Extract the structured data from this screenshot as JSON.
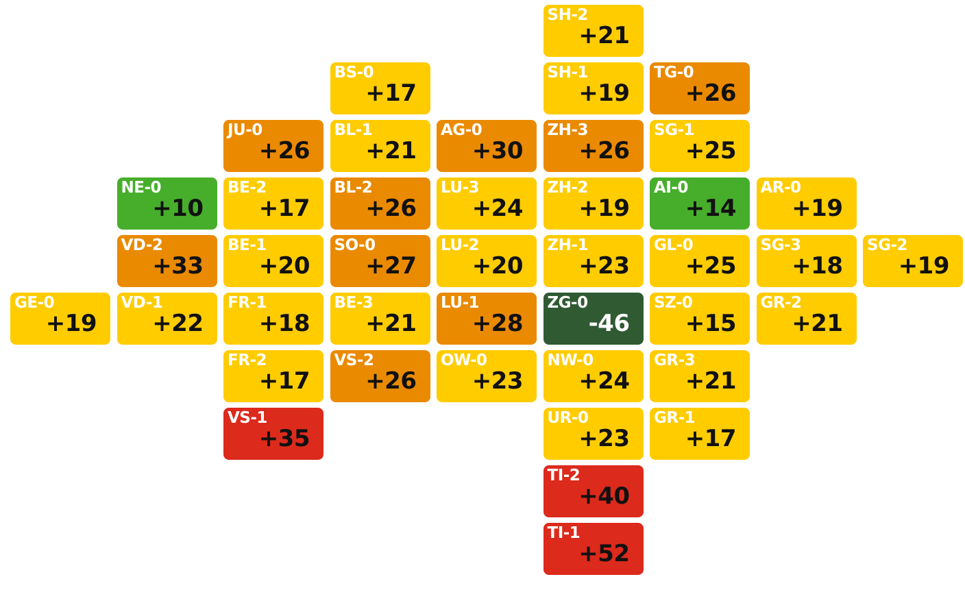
{
  "colors": {
    "yellow": "#FFCC00",
    "orange": "#EA8A00",
    "red": "#DC2A1C",
    "green": "#47AE2B",
    "dark_green": "#2F5A32"
  },
  "tiles": [
    {
      "code": "SH-2",
      "value": "+21",
      "color": "yellow",
      "col": 5,
      "row": 0
    },
    {
      "code": "BS-0",
      "value": "+17",
      "color": "yellow",
      "col": 3,
      "row": 1
    },
    {
      "code": "SH-1",
      "value": "+19",
      "color": "yellow",
      "col": 5,
      "row": 1
    },
    {
      "code": "TG-0",
      "value": "+26",
      "color": "orange",
      "col": 6,
      "row": 1
    },
    {
      "code": "JU-0",
      "value": "+26",
      "color": "orange",
      "col": 2,
      "row": 2
    },
    {
      "code": "BL-1",
      "value": "+21",
      "color": "yellow",
      "col": 3,
      "row": 2
    },
    {
      "code": "AG-0",
      "value": "+30",
      "color": "orange",
      "col": 4,
      "row": 2
    },
    {
      "code": "ZH-3",
      "value": "+26",
      "color": "orange",
      "col": 5,
      "row": 2
    },
    {
      "code": "SG-1",
      "value": "+25",
      "color": "yellow",
      "col": 6,
      "row": 2
    },
    {
      "code": "NE-0",
      "value": "+10",
      "color": "green",
      "col": 1,
      "row": 3
    },
    {
      "code": "BE-2",
      "value": "+17",
      "color": "yellow",
      "col": 2,
      "row": 3
    },
    {
      "code": "BL-2",
      "value": "+26",
      "color": "orange",
      "col": 3,
      "row": 3
    },
    {
      "code": "LU-3",
      "value": "+24",
      "color": "yellow",
      "col": 4,
      "row": 3
    },
    {
      "code": "ZH-2",
      "value": "+19",
      "color": "yellow",
      "col": 5,
      "row": 3
    },
    {
      "code": "AI-0",
      "value": "+14",
      "color": "green",
      "col": 6,
      "row": 3
    },
    {
      "code": "AR-0",
      "value": "+19",
      "color": "yellow",
      "col": 7,
      "row": 3
    },
    {
      "code": "VD-2",
      "value": "+33",
      "color": "orange",
      "col": 1,
      "row": 4
    },
    {
      "code": "BE-1",
      "value": "+20",
      "color": "yellow",
      "col": 2,
      "row": 4
    },
    {
      "code": "SO-0",
      "value": "+27",
      "color": "orange",
      "col": 3,
      "row": 4
    },
    {
      "code": "LU-2",
      "value": "+20",
      "color": "yellow",
      "col": 4,
      "row": 4
    },
    {
      "code": "ZH-1",
      "value": "+23",
      "color": "yellow",
      "col": 5,
      "row": 4
    },
    {
      "code": "GL-0",
      "value": "+25",
      "color": "yellow",
      "col": 6,
      "row": 4
    },
    {
      "code": "SG-3",
      "value": "+18",
      "color": "yellow",
      "col": 7,
      "row": 4
    },
    {
      "code": "SG-2",
      "value": "+19",
      "color": "yellow",
      "col": 8,
      "row": 4
    },
    {
      "code": "GE-0",
      "value": "+19",
      "color": "yellow",
      "col": 0,
      "row": 5
    },
    {
      "code": "VD-1",
      "value": "+22",
      "color": "yellow",
      "col": 1,
      "row": 5
    },
    {
      "code": "FR-1",
      "value": "+18",
      "color": "yellow",
      "col": 2,
      "row": 5
    },
    {
      "code": "BE-3",
      "value": "+21",
      "color": "yellow",
      "col": 3,
      "row": 5
    },
    {
      "code": "LU-1",
      "value": "+28",
      "color": "orange",
      "col": 4,
      "row": 5
    },
    {
      "code": "ZG-0",
      "value": "-46",
      "color": "dark_green",
      "col": 5,
      "row": 5
    },
    {
      "code": "SZ-0",
      "value": "+15",
      "color": "yellow",
      "col": 6,
      "row": 5
    },
    {
      "code": "GR-2",
      "value": "+21",
      "color": "yellow",
      "col": 7,
      "row": 5
    },
    {
      "code": "FR-2",
      "value": "+17",
      "color": "yellow",
      "col": 2,
      "row": 6
    },
    {
      "code": "VS-2",
      "value": "+26",
      "color": "orange",
      "col": 3,
      "row": 6
    },
    {
      "code": "OW-0",
      "value": "+23",
      "color": "yellow",
      "col": 4,
      "row": 6
    },
    {
      "code": "NW-0",
      "value": "+24",
      "color": "yellow",
      "col": 5,
      "row": 6
    },
    {
      "code": "GR-3",
      "value": "+21",
      "color": "yellow",
      "col": 6,
      "row": 6
    },
    {
      "code": "VS-1",
      "value": "+35",
      "color": "red",
      "col": 2,
      "row": 7
    },
    {
      "code": "UR-0",
      "value": "+23",
      "color": "yellow",
      "col": 5,
      "row": 7
    },
    {
      "code": "GR-1",
      "value": "+17",
      "color": "yellow",
      "col": 6,
      "row": 7
    },
    {
      "code": "TI-2",
      "value": "+40",
      "color": "red",
      "col": 5,
      "row": 8
    },
    {
      "code": "TI-1",
      "value": "+52",
      "color": "red",
      "col": 5,
      "row": 9
    }
  ]
}
